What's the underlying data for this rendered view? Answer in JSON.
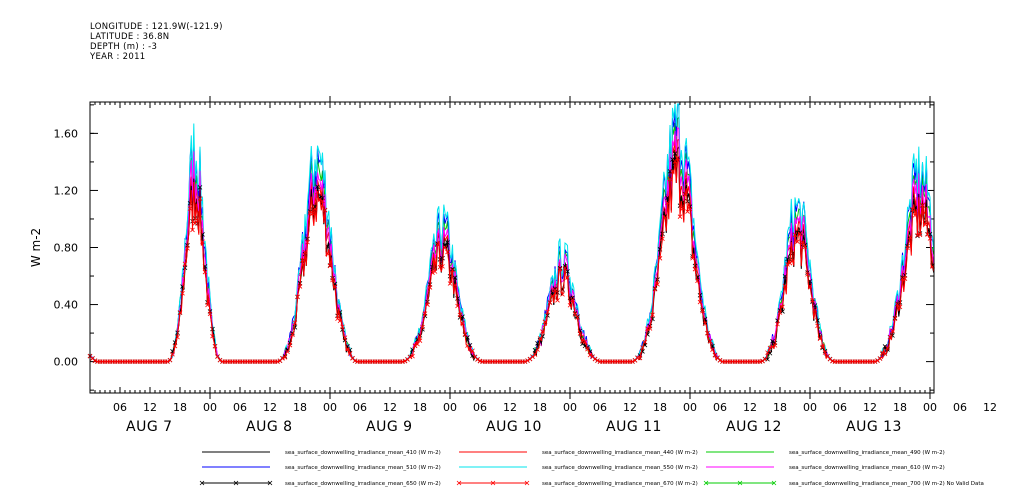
{
  "header": {
    "longitude": "LONGITUDE : 121.9W(-121.9)",
    "latitude": "LATITUDE : 36.8N",
    "depth": "DEPTH (m) : -3",
    "year": "YEAR : 2011"
  },
  "chart_data": {
    "type": "line",
    "ylabel": "W m-2",
    "ylim": [
      -0.22,
      1.82
    ],
    "yticks": [
      "0.00",
      "0.40",
      "0.80",
      "1.20",
      "1.60"
    ],
    "ytick_values": [
      0.0,
      0.4,
      0.8,
      1.2,
      1.6
    ],
    "xlim_hours": [
      0,
      171
    ],
    "hour_tick_labels": [
      "06",
      "12",
      "18",
      "00",
      "06",
      "12",
      "18",
      "00",
      "06",
      "12",
      "18",
      "00",
      "06",
      "12",
      "18",
      "00",
      "06",
      "12",
      "18",
      "00",
      "06",
      "12",
      "18",
      "00",
      "06",
      "12",
      "18",
      "00",
      "06",
      "12",
      "18",
      "00"
    ],
    "day_labels": [
      "AUG 7",
      "AUG 8",
      "AUG 9",
      "AUG 10",
      "AUG 11",
      "AUG 12",
      "AUG 13"
    ],
    "grid": false,
    "legend_placement": "bottom",
    "days": [
      {
        "label": "AUG 7",
        "peak": 1.53,
        "peak_hour": 21.0,
        "rise": 14.0,
        "set": 4.5
      },
      {
        "label": "AUG 8",
        "peak": 1.48,
        "peak_hour": 45.5,
        "rise": 38.0,
        "set": 52.0
      },
      {
        "label": "AUG 9",
        "peak": 0.98,
        "peak_hour": 70.5,
        "rise": 62.0,
        "set": 76.0
      },
      {
        "label": "AUG 10",
        "peak": 0.75,
        "peak_hour": 94.5,
        "rise": 86.5,
        "set": 100.0
      },
      {
        "label": "AUG 11",
        "peak": 1.7,
        "peak_hour": 117.5,
        "rise": 110.5,
        "set": 126.5
      },
      {
        "label": "AUG 12",
        "peak": 1.11,
        "peak_hour": 141.5,
        "rise": 135.0,
        "set": 148.0
      },
      {
        "label": "AUG 13",
        "peak": 1.36,
        "peak_hour": 166.0,
        "rise": 159.0,
        "set": 175.0
      }
    ],
    "series": [
      {
        "name": "sea_surface_downwelling_irradiance_mean_410 (W m-2)",
        "color": "#000000",
        "scale": 0.8
      },
      {
        "name": "sea_surface_downwelling_irradiance_mean_440 (W m-2)",
        "color": "#ff0000",
        "scale": 0.84
      },
      {
        "name": "sea_surface_downwelling_irradiance_mean_490 (W m-2)",
        "color": "#00cc00",
        "scale": 0.92
      },
      {
        "name": "sea_surface_downwelling_irradiance_mean_510 (W m-2)",
        "color": "#0000ff",
        "scale": 0.97
      },
      {
        "name": "sea_surface_downwelling_irradiance_mean_550 (W m-2)",
        "color": "#00e5ee",
        "scale": 1.0
      },
      {
        "name": "sea_surface_downwelling_irradiance_mean_610 (W m-2)",
        "color": "#ff00ff",
        "scale": 0.88
      },
      {
        "name": "sea_surface_downwelling_irradiance_mean_650 (W m-2)",
        "color": "#000000",
        "scale": 0.78,
        "marker": "x"
      },
      {
        "name": "sea_surface_downwelling_irradiance_mean_670 (W m-2)",
        "color": "#ff0000",
        "scale": 0.76,
        "marker": "x"
      },
      {
        "name": "sea_surface_downwelling_irradiance_mean_700 (W m-2) No Valid Data",
        "color": "#00cc00",
        "scale": 0.0,
        "marker": "x",
        "no_data": true
      }
    ]
  }
}
